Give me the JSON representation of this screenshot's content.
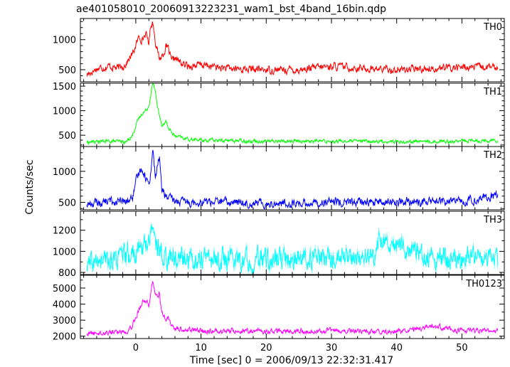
{
  "title": "ae401058010_20060913223231_wam1_bst_4band_16bin.qdp",
  "chart_data": {
    "type": "line",
    "title": "ae401058010_20060913223231_wam1_bst_4band_16bin.qdp",
    "xlabel": "Time [sec] 0 = 2006/09/13 22:32:31.417",
    "ylabel": "Counts/sec",
    "xlim": [
      -8.5,
      56.5
    ],
    "x_ticks": [
      0,
      10,
      20,
      30,
      40,
      50
    ],
    "x_minor_step": 2,
    "grid": false,
    "panels": [
      {
        "name": "TH0",
        "color": "#ff0000",
        "ylim": [
          300,
          1350
        ],
        "y_ticks": [
          500,
          1000
        ],
        "y_minor_step": 100,
        "x": [
          -7.5,
          -6,
          -4,
          -2.5,
          -1.5,
          -0.5,
          0,
          0.5,
          1,
          1.5,
          2,
          2.3,
          2.6,
          3,
          3.3,
          3.6,
          4.2,
          4.6,
          5,
          5.5,
          6,
          7,
          8,
          10,
          14,
          20,
          25,
          30,
          35,
          40,
          45,
          50,
          55.5
        ],
        "y": [
          420,
          520,
          560,
          520,
          600,
          760,
          900,
          1050,
          1000,
          1100,
          950,
          1250,
          1300,
          980,
          820,
          680,
          760,
          880,
          840,
          620,
          700,
          600,
          560,
          580,
          520,
          500,
          500,
          560,
          520,
          500,
          520,
          540,
          540
        ],
        "noise": 50
      },
      {
        "name": "TH1",
        "color": "#00ff00",
        "ylim": [
          270,
          1560
        ],
        "y_ticks": [
          500,
          1000,
          1500
        ],
        "y_minor_step": 100,
        "x": [
          -7.5,
          -4,
          -1.5,
          -0.5,
          0,
          0.5,
          1,
          1.5,
          2,
          2.3,
          2.6,
          3,
          3.3,
          3.6,
          4,
          4.6,
          5,
          5.5,
          6,
          8,
          10,
          20,
          30,
          40,
          50,
          55.5
        ],
        "y": [
          360,
          380,
          360,
          500,
          700,
          850,
          950,
          1000,
          1100,
          1350,
          1550,
          1400,
          1100,
          900,
          700,
          800,
          640,
          560,
          480,
          420,
          400,
          380,
          380,
          370,
          380,
          400
        ],
        "noise": 30
      },
      {
        "name": "TH2",
        "color": "#0000ff",
        "ylim": [
          380,
          1400
        ],
        "y_ticks": [
          500,
          1000
        ],
        "y_minor_step": 100,
        "x": [
          -7.5,
          -4,
          -1.5,
          -0.5,
          0,
          0.5,
          1,
          1.5,
          2,
          2.3,
          2.6,
          3,
          3.3,
          3.6,
          4,
          4.5,
          5,
          6,
          8,
          10,
          20,
          30,
          40,
          50,
          55.5
        ],
        "y": [
          470,
          520,
          500,
          580,
          800,
          1000,
          1050,
          900,
          800,
          1000,
          1380,
          900,
          1050,
          1250,
          700,
          620,
          560,
          520,
          500,
          520,
          480,
          500,
          500,
          520,
          600
        ],
        "noise": 55
      },
      {
        "name": "TH3",
        "color": "#00ffff",
        "ylim": [
          780,
          1380
        ],
        "y_ticks": [
          800,
          1000,
          1200
        ],
        "y_minor_step": 100,
        "x": [
          -7.5,
          -4,
          -2,
          0,
          1,
          2,
          2.6,
          3,
          4,
          5,
          8,
          20,
          30,
          36.5,
          37,
          45,
          55.5
        ],
        "y": [
          860,
          920,
          940,
          980,
          1050,
          1100,
          1300,
          1050,
          980,
          940,
          930,
          920,
          930,
          940,
          1150,
          930,
          920
        ],
        "noise": 85
      },
      {
        "name": "TH0123",
        "color": "#ff00ff",
        "ylim": [
          1850,
          5800
        ],
        "y_ticks": [
          2000,
          3000,
          4000,
          5000
        ],
        "y_minor_step": 500,
        "x": [
          -7.5,
          -4,
          -1.5,
          -0.5,
          0,
          0.5,
          1,
          1.5,
          2,
          2.3,
          2.6,
          3,
          3.3,
          3.6,
          4,
          4.6,
          5,
          5.5,
          6,
          8,
          10,
          20,
          30,
          40,
          45.8,
          50,
          55.5
        ],
        "y": [
          2150,
          2250,
          2300,
          2700,
          3200,
          3700,
          4100,
          4300,
          3900,
          4800,
          5600,
          4600,
          4400,
          4700,
          3400,
          3000,
          3100,
          2600,
          2500,
          2400,
          2350,
          2300,
          2300,
          2300,
          2600,
          2350,
          2350
        ],
        "noise": 130
      }
    ]
  }
}
